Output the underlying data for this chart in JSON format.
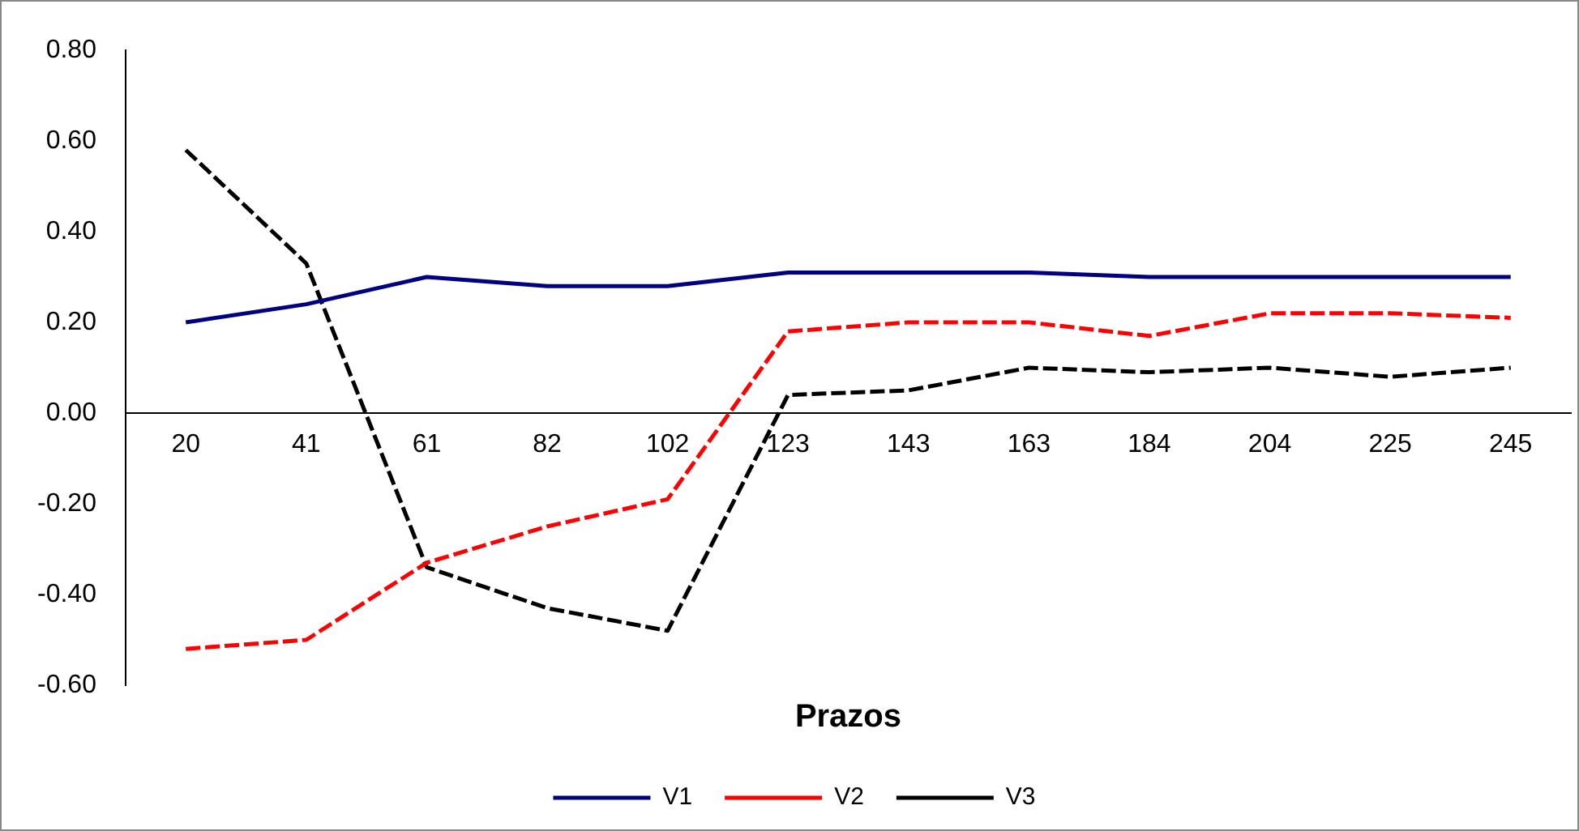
{
  "chart_data": {
    "type": "line",
    "xlabel": "Prazos",
    "categories": [
      "20",
      "41",
      "61",
      "82",
      "102",
      "123",
      "143",
      "163",
      "184",
      "204",
      "225",
      "245"
    ],
    "series": [
      {
        "name": "V1",
        "color": "#000080",
        "line_style": "solid",
        "values": [
          0.2,
          0.24,
          0.3,
          0.28,
          0.28,
          0.31,
          0.31,
          0.31,
          0.3,
          0.3,
          0.3,
          0.3
        ]
      },
      {
        "name": "V2",
        "color": "#ff0000",
        "line_style": "dashed",
        "values": [
          -0.52,
          -0.5,
          -0.33,
          -0.25,
          -0.19,
          0.18,
          0.2,
          0.2,
          0.17,
          0.22,
          0.22,
          0.21
        ]
      },
      {
        "name": "V3",
        "color": "#000000",
        "line_style": "dashed",
        "values": [
          0.58,
          0.33,
          -0.34,
          -0.43,
          -0.48,
          0.04,
          0.05,
          0.1,
          0.09,
          0.1,
          0.08,
          0.1
        ]
      }
    ],
    "ylim": [
      -0.6,
      0.8
    ],
    "yticks": [
      {
        "value": -0.6,
        "label": "-0.60"
      },
      {
        "value": -0.4,
        "label": "-0.40"
      },
      {
        "value": -0.2,
        "label": "-0.20"
      },
      {
        "value": 0,
        "label": "0.00"
      },
      {
        "value": 0.2,
        "label": "0.20"
      },
      {
        "value": 0.4,
        "label": "0.40"
      },
      {
        "value": 0.6,
        "label": "0.60"
      },
      {
        "value": 0.8,
        "label": "0.80"
      }
    ],
    "grid": false,
    "legend": "bottom",
    "marker": "none"
  }
}
